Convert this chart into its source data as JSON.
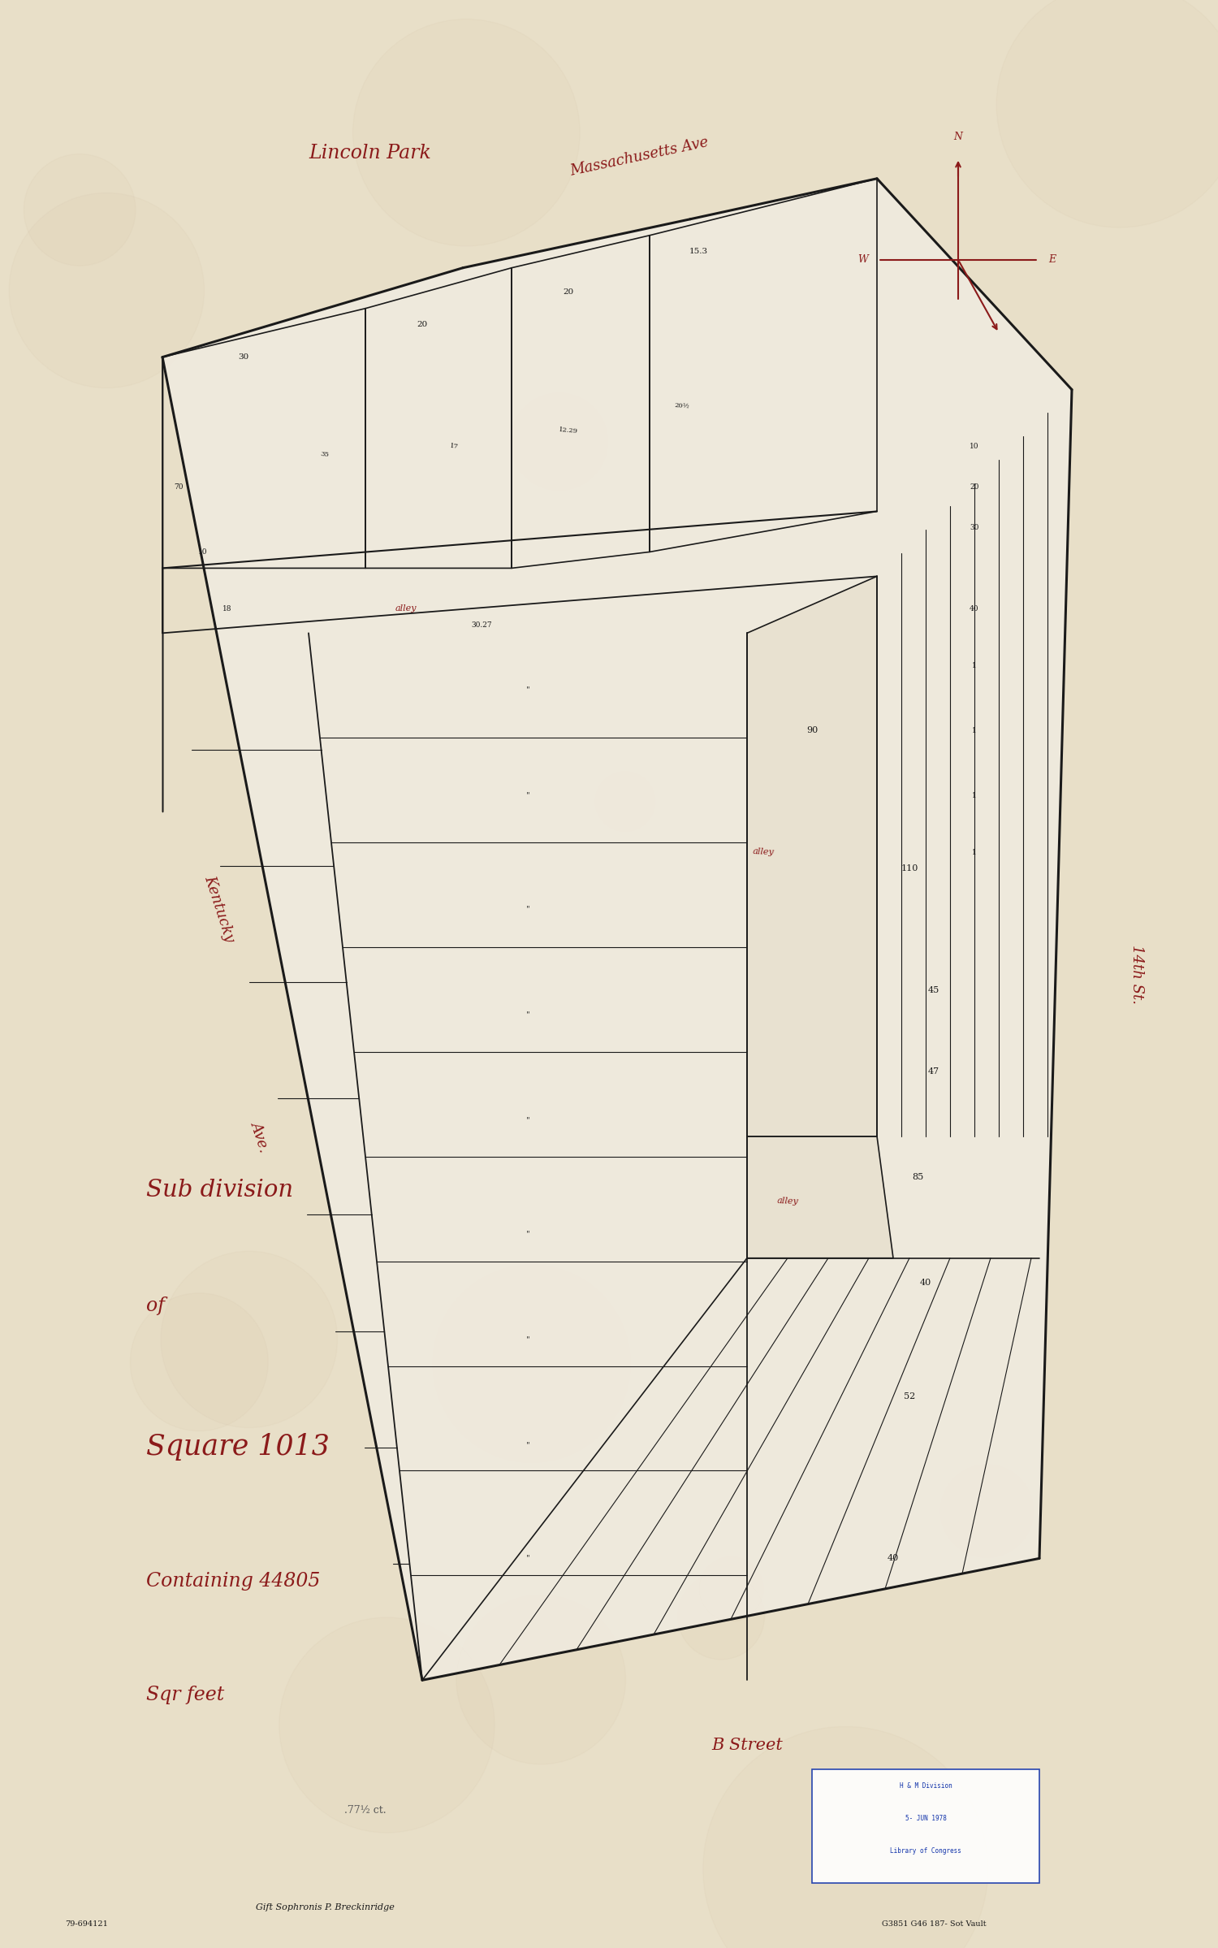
{
  "paper_color": "#e8dfc8",
  "ink_color": "#1a1a1a",
  "red_color": "#8b1a1a",
  "title_lines": [
    "Sub division",
    "of",
    "Square 1013",
    "Containing 44805",
    "Sqr feet"
  ],
  "lincoln_park": "Lincoln Park",
  "massachusetts_ave": "Massachusetts Ave",
  "kentucky_ave": "Kentucky",
  "kentucky_ave2": "Ave.",
  "fourteenth_st": "14th St.",
  "b_street": "B Street",
  "note": ".77½ ct.",
  "gift_note": "Gift Sophronis P. Breckinridge",
  "catalog_note": "79-694121",
  "ref_note": "G3851 G46 187- Sot Vault",
  "stamp_text": [
    "H & M Division",
    "5- JUN 1978",
    "Library of Congress"
  ],
  "compass_N": "N",
  "compass_W": "W",
  "compass_E": "E"
}
